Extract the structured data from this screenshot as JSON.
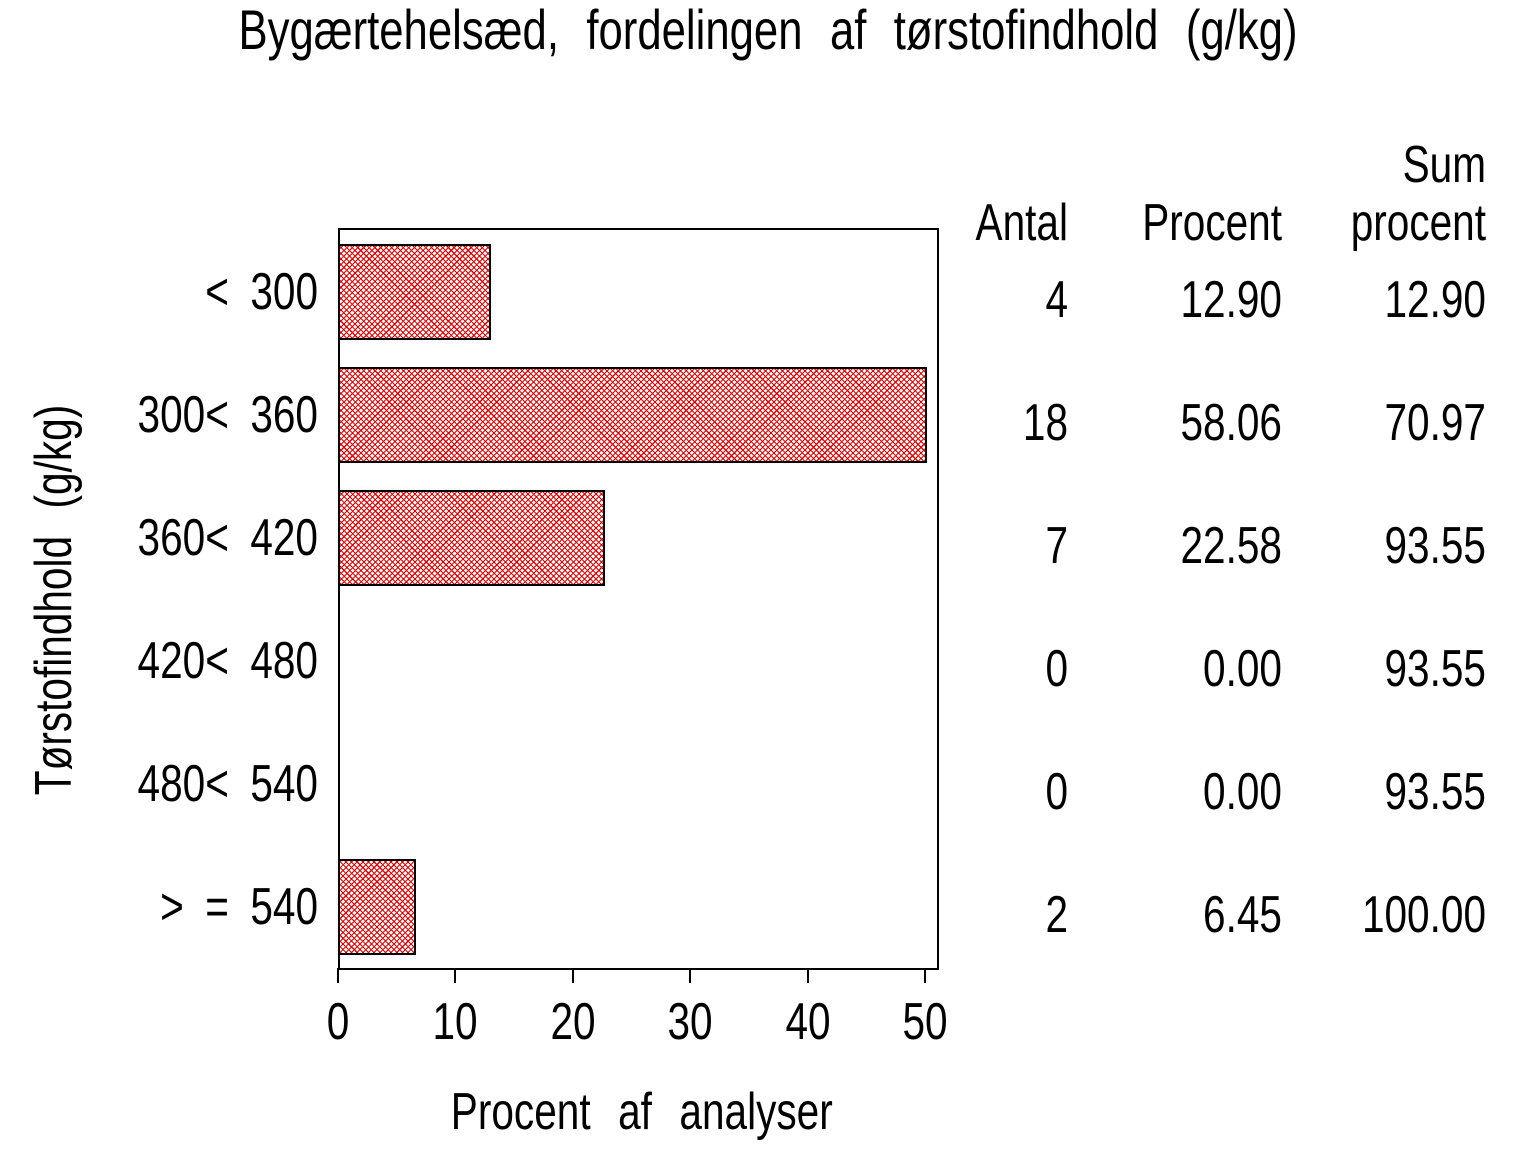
{
  "chart_data": {
    "type": "bar",
    "orientation": "horizontal",
    "title": "Bygærtehelsæd, fordelingen af tørstofindhold (g/kg)",
    "xlabel": "Procent af analyser",
    "ylabel": "Tørstofindhold (g/kg)",
    "categories": [
      "< 300",
      "300< 360",
      "360< 420",
      "420< 480",
      "480< 540",
      "> = 540"
    ],
    "values": [
      12.9,
      58.06,
      22.58,
      0.0,
      0.0,
      6.45
    ],
    "counts": [
      4,
      18,
      7,
      0,
      0,
      2
    ],
    "cumulative_percent": [
      12.9,
      70.97,
      93.55,
      93.55,
      93.55,
      100.0
    ],
    "xlim": [
      0,
      50
    ],
    "x_ticks": [
      0,
      10,
      20,
      30,
      40,
      50
    ],
    "grid": false,
    "legend": "none",
    "bar_fill_style": "diagonal-crosshatch",
    "hatch_color": "#e80000",
    "bar_border_color": "#000000",
    "frame_color": "#000000",
    "background_color": "#ffffff",
    "note_values_clipped_at_axis_max": "bar for 58.06 drawn to 50"
  },
  "table": {
    "header": {
      "antal": "Antal",
      "procent": "Procent",
      "sum_line1": "Sum",
      "sum_line2": "procent"
    },
    "rows": [
      {
        "antal": "4",
        "procent": "12.90",
        "sum": "12.90"
      },
      {
        "antal": "18",
        "procent": "58.06",
        "sum": "70.97"
      },
      {
        "antal": "7",
        "procent": "22.58",
        "sum": "93.55"
      },
      {
        "antal": "0",
        "procent": "0.00",
        "sum": "93.55"
      },
      {
        "antal": "0",
        "procent": "0.00",
        "sum": "93.55"
      },
      {
        "antal": "2",
        "procent": "6.45",
        "sum": "100.00"
      }
    ]
  }
}
